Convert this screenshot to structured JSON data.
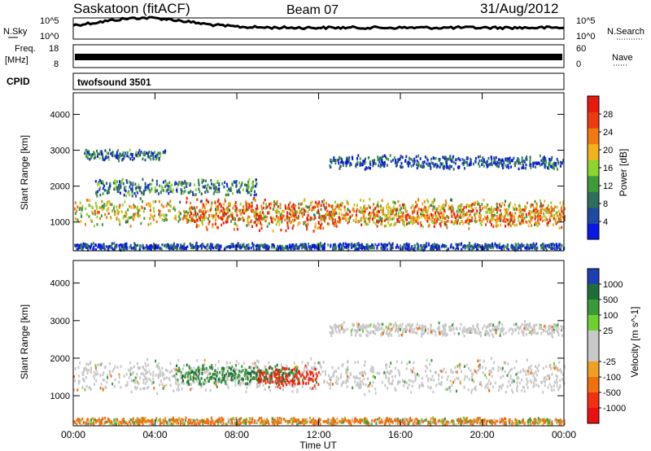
{
  "header": {
    "station": "Saskatoon (fitACF)",
    "beam": "Beam 07",
    "date": "31/Aug/2012"
  },
  "status_panels": {
    "nsky_label": "N.Sky",
    "nsearch_label": "N.Search",
    "nsky_ticks": [
      "10^5",
      "10^0"
    ],
    "nsearch_ticks": [
      "10^5",
      "10^0"
    ],
    "freq_label": "Freq.",
    "freq_unit": "[MHz]",
    "freq_ticks": [
      "18",
      "8"
    ],
    "nave_label": "Nave",
    "nave_ticks": [
      "60",
      "0"
    ],
    "cpid_label": "CPID",
    "cpid_value": "twofsound 3501"
  },
  "colors": {
    "power_scale": [
      "#0a17e6",
      "#1f4aa0",
      "#2f6e5c",
      "#3e9a3a",
      "#8ed430",
      "#f2b21a",
      "#f07a12",
      "#ee3a10",
      "#e81a10"
    ],
    "velocity_scale": [
      "#1e3fb0",
      "#1f6e3a",
      "#3a9a3a",
      "#6fd030",
      "#c8c8c8",
      "#c8c8c8",
      "#f0a020",
      "#f07010",
      "#f03010",
      "#e81010"
    ],
    "ground_scatter": "#c8c8c8"
  },
  "chart_data": [
    {
      "type": "heatmap",
      "panel": "power",
      "ylabel": "Slant Range [km]",
      "xlabel": "",
      "colorbar_label": "Power [dB]",
      "colorbar_ticks": [
        "28",
        "24",
        "20",
        "16",
        "12",
        "8",
        "4"
      ],
      "colorbar_range": [
        0,
        32
      ],
      "ylim": [
        200,
        4600
      ],
      "yticks": [
        "4000",
        "3000",
        "2000",
        "1000"
      ],
      "xlim_hours": [
        0,
        24
      ],
      "scatter_regions": [
        {
          "x_start": 0.5,
          "x_end": 4.5,
          "range_center": 2900,
          "range_width": 250,
          "level": 0.25
        },
        {
          "x_start": 0,
          "x_end": 24,
          "range_center": 1300,
          "range_width": 600,
          "level": 0.55
        },
        {
          "x_start": 5.5,
          "x_end": 12.5,
          "range_center": 1250,
          "range_width": 700,
          "level": 0.85
        },
        {
          "x_start": 1,
          "x_end": 9,
          "range_center": 2000,
          "range_width": 400,
          "level": 0.3
        },
        {
          "x_start": 12.5,
          "x_end": 24,
          "range_center": 1200,
          "range_width": 500,
          "level": 0.75
        },
        {
          "x_start": 12.5,
          "x_end": 24,
          "range_center": 2700,
          "range_width": 300,
          "level": 0.2
        },
        {
          "x_start": 0,
          "x_end": 24,
          "range_center": 350,
          "range_width": 150,
          "level": 0.15
        }
      ]
    },
    {
      "type": "heatmap",
      "panel": "velocity",
      "ylabel": "Slant Range [km]",
      "xlabel": "Time UT",
      "colorbar_label": "Velocity [m s^-1]",
      "colorbar_ticks": [
        "1000",
        "500",
        "100",
        "25",
        "-25",
        "-100",
        "-500",
        "-1000"
      ],
      "ylim": [
        200,
        4600
      ],
      "yticks": [
        "4000",
        "3000",
        "2000",
        "1000"
      ],
      "xticks": [
        "00:00",
        "04:00",
        "08:00",
        "12:00",
        "16:00",
        "20:00",
        "00:00"
      ],
      "xlim_hours": [
        0,
        24
      ],
      "scatter_regions": [
        {
          "x_start": 0,
          "x_end": 24,
          "range_center": 1550,
          "range_width": 700,
          "velocity": 0
        },
        {
          "x_start": 5,
          "x_end": 11,
          "range_center": 1600,
          "range_width": 400,
          "velocity": 300
        },
        {
          "x_start": 9,
          "x_end": 12,
          "range_center": 1550,
          "range_width": 500,
          "velocity": -600
        },
        {
          "x_start": 12.5,
          "x_end": 24,
          "range_center": 2800,
          "range_width": 300,
          "velocity": 0
        },
        {
          "x_start": 0,
          "x_end": 24,
          "range_center": 350,
          "range_width": 150,
          "velocity": -100
        }
      ]
    }
  ]
}
